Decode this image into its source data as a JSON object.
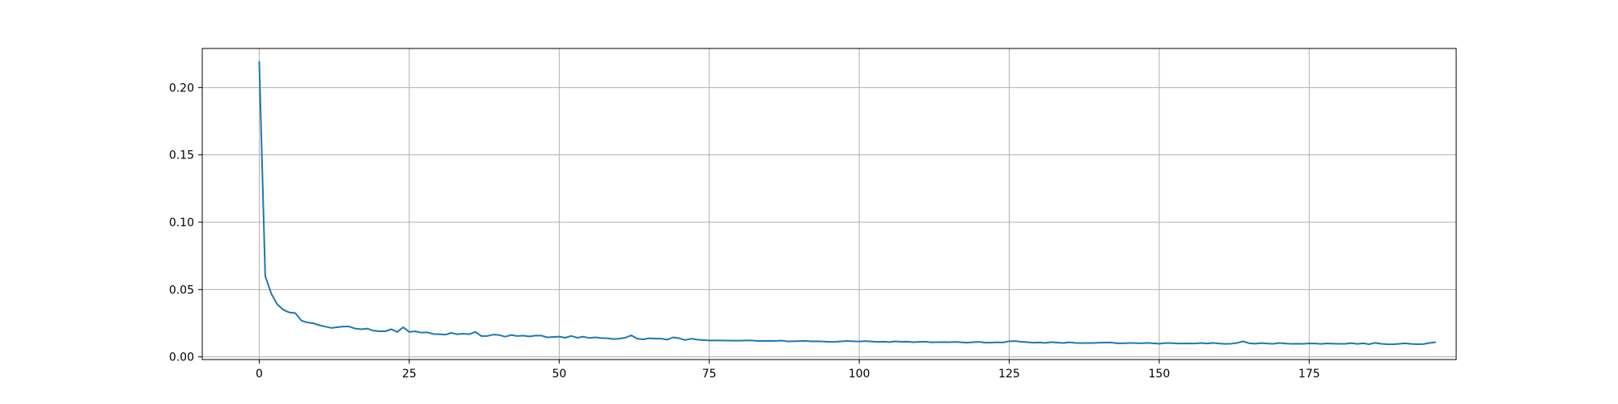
{
  "chart_data": {
    "type": "line",
    "title": "",
    "xlabel": "",
    "ylabel": "",
    "xlim": [
      -9.5,
      199.5
    ],
    "ylim": [
      -0.002,
      0.229
    ],
    "grid": true,
    "line_color": "#1f77b4",
    "x_ticks": [
      {
        "value": 0,
        "label": "0"
      },
      {
        "value": 25,
        "label": "25"
      },
      {
        "value": 50,
        "label": "50"
      },
      {
        "value": 75,
        "label": "75"
      },
      {
        "value": 100,
        "label": "100"
      },
      {
        "value": 125,
        "label": "125"
      },
      {
        "value": 150,
        "label": "150"
      },
      {
        "value": 175,
        "label": "175"
      }
    ],
    "y_ticks": [
      {
        "value": 0.0,
        "label": "0.00"
      },
      {
        "value": 0.05,
        "label": "0.05"
      },
      {
        "value": 0.1,
        "label": "0.10"
      },
      {
        "value": 0.15,
        "label": "0.15"
      },
      {
        "value": 0.2,
        "label": "0.20"
      }
    ],
    "series": [
      {
        "name": "",
        "values": [
          0.219,
          0.06,
          0.047,
          0.039,
          0.035,
          0.033,
          0.0325,
          0.027,
          0.0255,
          0.025,
          0.0235,
          0.0225,
          0.0215,
          0.022,
          0.0225,
          0.0225,
          0.021,
          0.0205,
          0.021,
          0.0195,
          0.019,
          0.019,
          0.0205,
          0.0185,
          0.022,
          0.0185,
          0.019,
          0.018,
          0.0182,
          0.017,
          0.0168,
          0.0165,
          0.0178,
          0.0168,
          0.0172,
          0.0168,
          0.0185,
          0.0155,
          0.0155,
          0.0165,
          0.0162,
          0.015,
          0.0162,
          0.0155,
          0.0158,
          0.0152,
          0.0158,
          0.0158,
          0.0145,
          0.0148,
          0.015,
          0.0142,
          0.0155,
          0.0142,
          0.015,
          0.014,
          0.0145,
          0.014,
          0.0138,
          0.0132,
          0.0135,
          0.0142,
          0.016,
          0.0135,
          0.013,
          0.0138,
          0.0135,
          0.0135,
          0.0128,
          0.0145,
          0.0138,
          0.0125,
          0.0135,
          0.0128,
          0.0125,
          0.0122,
          0.0122,
          0.0122,
          0.0121,
          0.012,
          0.012,
          0.0122,
          0.0122,
          0.0118,
          0.0118,
          0.0119,
          0.0118,
          0.0121,
          0.0115,
          0.0116,
          0.0117,
          0.0119,
          0.0115,
          0.0116,
          0.0114,
          0.0111,
          0.0112,
          0.0115,
          0.0118,
          0.0116,
          0.0114,
          0.0117,
          0.0114,
          0.0111,
          0.0113,
          0.011,
          0.0115,
          0.0112,
          0.0113,
          0.0109,
          0.0111,
          0.0113,
          0.0108,
          0.0109,
          0.011,
          0.0109,
          0.0111,
          0.0108,
          0.0105,
          0.0109,
          0.0111,
          0.0105,
          0.0106,
          0.0108,
          0.0107,
          0.0116,
          0.0117,
          0.0112,
          0.0109,
          0.0105,
          0.0107,
          0.0104,
          0.0109,
          0.0106,
          0.0103,
          0.0108,
          0.0104,
          0.0102,
          0.0103,
          0.0103,
          0.0105,
          0.0106,
          0.0107,
          0.0101,
          0.0101,
          0.0103,
          0.0102,
          0.0101,
          0.0104,
          0.0101,
          0.0098,
          0.0102,
          0.0102,
          0.0099,
          0.0099,
          0.01,
          0.0099,
          0.0103,
          0.0099,
          0.0104,
          0.0099,
          0.0096,
          0.0098,
          0.0104,
          0.0115,
          0.0101,
          0.0098,
          0.0102,
          0.0099,
          0.0097,
          0.0103,
          0.0099,
          0.0097,
          0.0098,
          0.0097,
          0.01,
          0.0099,
          0.0096,
          0.01,
          0.0098,
          0.0097,
          0.0097,
          0.0102,
          0.0096,
          0.0101,
          0.0094,
          0.0104,
          0.0097,
          0.0094,
          0.0093,
          0.0097,
          0.0101,
          0.0096,
          0.0094,
          0.0095,
          0.0103,
          0.0108
        ]
      }
    ]
  }
}
